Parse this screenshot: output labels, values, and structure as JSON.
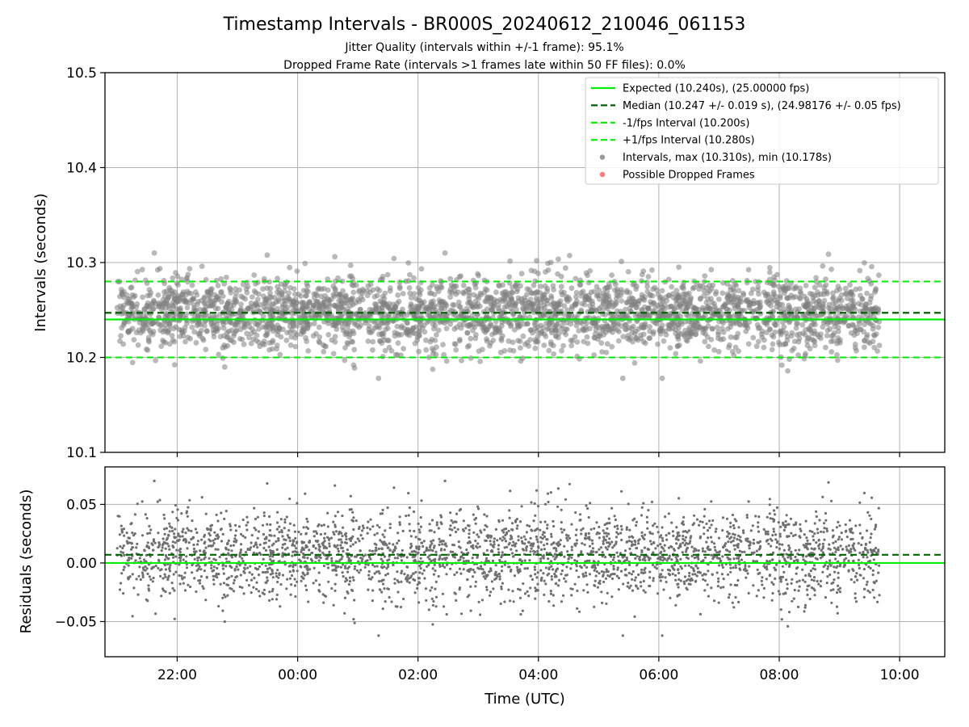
{
  "chart_data": {
    "type": "scatter",
    "title": "Timestamp Intervals - BR000S_20240612_210046_061153",
    "subtitle_lines": [
      "Jitter Quality (intervals within +/-1 frame): 95.1%",
      "Dropped Frame Rate (intervals >1 frames late within 50 FF files): 0.0%"
    ],
    "xlabel": "Time (UTC)",
    "x_range_hours": [
      -3.2,
      10.75
    ],
    "x_ticks": [
      {
        "hours": 1,
        "label": "22:00"
      },
      {
        "hours": 3,
        "label": "00:00"
      },
      {
        "hours": 5,
        "label": "02:00"
      },
      {
        "hours": 7,
        "label": "04:00"
      },
      {
        "hours": 9,
        "label": "06:00"
      },
      {
        "hours": 11,
        "label": "08:00"
      },
      {
        "hours": 13,
        "label": "10:00"
      }
    ],
    "data_time_range": [
      "21:00",
      "09:40"
    ],
    "top": {
      "ylabel": "Intervals (seconds)",
      "ylim": [
        10.1,
        10.5
      ],
      "yticks": [
        "10.1",
        "10.2",
        "10.3",
        "10.4",
        "10.5"
      ],
      "grid": true,
      "expected": 10.24,
      "median": 10.247,
      "minus_fps": 10.2,
      "plus_fps": 10.28,
      "interval_max": 10.31,
      "interval_min": 10.178
    },
    "bottom": {
      "ylabel": "Residuals (seconds)",
      "ylim": [
        -0.08,
        0.082
      ],
      "yticks": [
        "−0.05",
        "0.00",
        "0.05"
      ],
      "grid": true,
      "zero": 0.0,
      "median": 0.007
    },
    "series": [
      {
        "name": "Expected (10.240s), (25.00000 fps)",
        "style": "solid-line",
        "color": "#00ee00"
      },
      {
        "name": "Median (10.247 +/- 0.019 s), (24.98176 +/- 0.05 fps)",
        "style": "dashed-line",
        "color": "#006400"
      },
      {
        "name": "-1/fps Interval (10.200s)",
        "style": "dashed-line",
        "color": "#00ee00"
      },
      {
        "name": "+1/fps Interval (10.280s)",
        "style": "dashed-line",
        "color": "#00ee00"
      },
      {
        "name": "Intervals, max (10.310s), min (10.178s)",
        "style": "marker",
        "color": "#808080"
      },
      {
        "name": "Possible Dropped Frames",
        "style": "marker",
        "color": "#ff5555"
      }
    ],
    "legend_position": "top-right",
    "scatter_stats": {
      "count": 3000,
      "mean": 10.247,
      "std": 0.019
    }
  }
}
